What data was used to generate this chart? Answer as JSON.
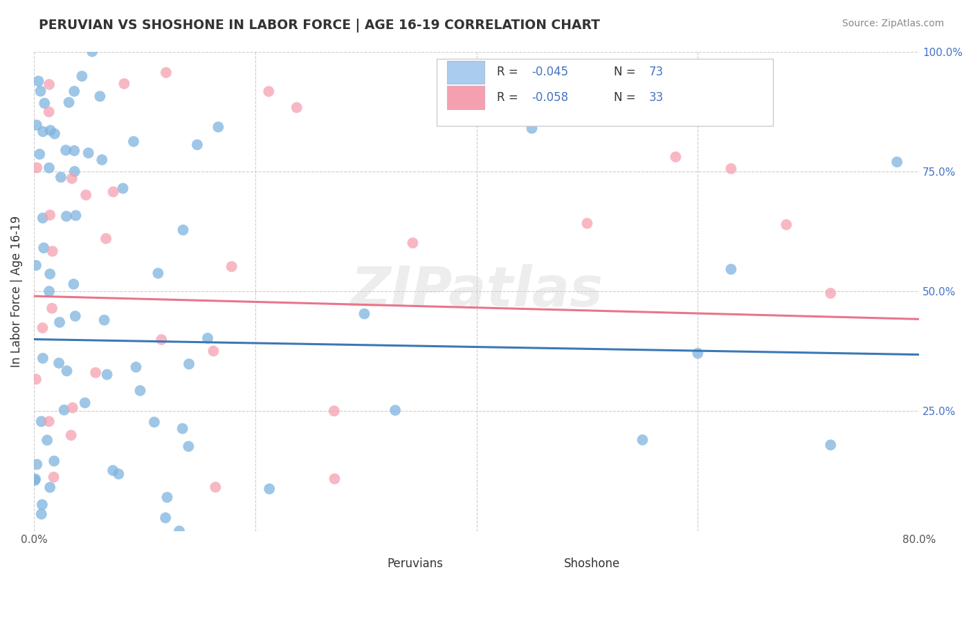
{
  "title": "PERUVIAN VS SHOSHONE IN LABOR FORCE | AGE 16-19 CORRELATION CHART",
  "source_text": "Source: ZipAtlas.com",
  "ylabel": "In Labor Force | Age 16-19",
  "xlim": [
    0.0,
    0.8
  ],
  "ylim": [
    0.0,
    1.0
  ],
  "peruvian_color": "#7eb3e0",
  "shoshone_color": "#f5a0b0",
  "peruvian_line_color": "#3a78b5",
  "shoshone_line_color": "#e8758a",
  "peruvian_N": 73,
  "shoshone_N": 33,
  "peruvian_R_str": "-0.045",
  "shoshone_R_str": "-0.058",
  "watermark": "ZIPatlas",
  "grid_color": "#cccccc",
  "background_color": "#ffffff",
  "legend_color1": "#aaccee",
  "legend_color2": "#f5a0b0",
  "text_color": "#333333",
  "blue_color": "#4472c4"
}
